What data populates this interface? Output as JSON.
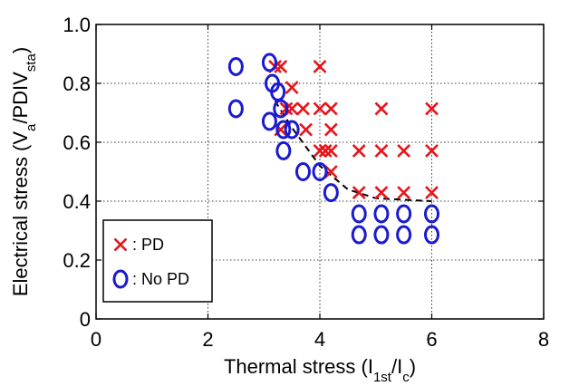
{
  "chart_data": {
    "type": "scatter",
    "xlabel": {
      "main": "Thermal stress (I",
      "sub1": "1st",
      "mid": "/I",
      "sub2": "c",
      "end": ")"
    },
    "ylabel": {
      "main": "Electrical stress (V",
      "sub1": "a",
      "mid": "/PDIV",
      "sub2": "sta",
      "end": ")"
    },
    "xlim": [
      0,
      8
    ],
    "ylim": [
      0,
      1.0
    ],
    "xticks": [
      "0",
      "2",
      "4",
      "6",
      "8"
    ],
    "yticks": [
      "0",
      "0.2",
      "0.4",
      "0.6",
      "0.8",
      "1.0"
    ],
    "grid": true,
    "legend_position": "bottom-left",
    "series": [
      {
        "name": ": PD",
        "marker": "x",
        "color": "#e8141a",
        "points": [
          [
            3.2,
            0.857
          ],
          [
            3.3,
            0.857
          ],
          [
            4.0,
            0.857
          ],
          [
            3.5,
            0.786
          ],
          [
            3.4,
            0.714
          ],
          [
            3.5,
            0.714
          ],
          [
            3.7,
            0.714
          ],
          [
            4.0,
            0.714
          ],
          [
            4.2,
            0.714
          ],
          [
            5.1,
            0.714
          ],
          [
            6.0,
            0.714
          ],
          [
            3.3,
            0.643
          ],
          [
            3.75,
            0.643
          ],
          [
            4.2,
            0.643
          ],
          [
            4.0,
            0.571
          ],
          [
            4.1,
            0.571
          ],
          [
            4.2,
            0.571
          ],
          [
            4.7,
            0.571
          ],
          [
            5.1,
            0.571
          ],
          [
            5.5,
            0.571
          ],
          [
            6.0,
            0.571
          ],
          [
            4.2,
            0.5
          ],
          [
            4.7,
            0.429
          ],
          [
            5.1,
            0.429
          ],
          [
            5.5,
            0.429
          ],
          [
            6.0,
            0.429
          ]
        ]
      },
      {
        "name": ": No PD",
        "marker": "o",
        "color": "#1a1ad0",
        "points": [
          [
            2.5,
            0.857
          ],
          [
            3.1,
            0.871
          ],
          [
            3.15,
            0.8
          ],
          [
            3.25,
            0.771
          ],
          [
            2.5,
            0.714
          ],
          [
            3.3,
            0.714
          ],
          [
            3.1,
            0.671
          ],
          [
            3.35,
            0.643
          ],
          [
            3.5,
            0.643
          ],
          [
            3.35,
            0.571
          ],
          [
            3.7,
            0.5
          ],
          [
            4.0,
            0.5
          ],
          [
            4.2,
            0.429
          ],
          [
            4.7,
            0.357
          ],
          [
            5.1,
            0.357
          ],
          [
            5.5,
            0.357
          ],
          [
            6.0,
            0.357
          ],
          [
            4.7,
            0.286
          ],
          [
            5.1,
            0.286
          ],
          [
            5.5,
            0.286
          ],
          [
            6.0,
            0.286
          ]
        ]
      }
    ],
    "boundary_line": {
      "style": "dashed",
      "color": "#000000",
      "points": [
        [
          3.2,
          0.74
        ],
        [
          3.5,
          0.65
        ],
        [
          4.0,
          0.52
        ],
        [
          4.5,
          0.44
        ],
        [
          5.0,
          0.41
        ],
        [
          6.0,
          0.4
        ]
      ]
    }
  }
}
